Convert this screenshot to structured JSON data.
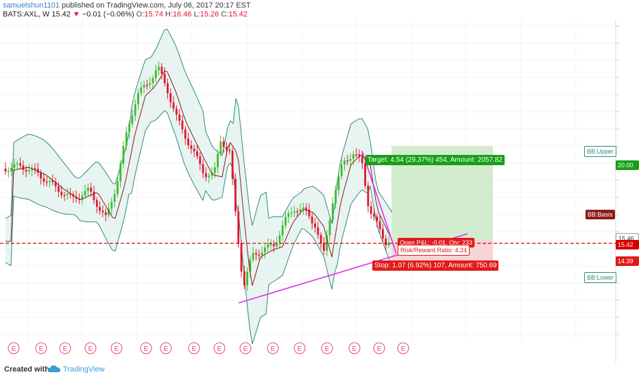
{
  "header": {
    "user": "samuelshun1101",
    "published": " published on TradingView.com, July 06, 2017 20:17 EST",
    "symbol": "BATS:AXL, W",
    "last": "15.42",
    "change_arrow": "▼",
    "change": "−0.01 (−0.06%)",
    "o_label": "O:",
    "o": "15.74",
    "h_label": "H:",
    "h": "16.46",
    "l_label": "L:",
    "l": "15.26",
    "c_label": "C:",
    "c": "15.42"
  },
  "labels": {
    "target": "Target: 4.54 (29.37%) 454, Amount: 2057.82",
    "open_pl": "Open P&L: -0.01, Qty: 233",
    "risk_reward": "Risk/Reward Ratio: 4.24",
    "stop": "Stop: 1.07 (6.92%) 107, Amount: 750.69",
    "bb_upper": "BB:Upper",
    "bb_basis": "BB:Basis",
    "bb_lower": "BB:Lower"
  },
  "price_axis": {
    "tag_target": "20.00",
    "tag_entry": "15.46",
    "tag_last": "15.42",
    "tag_stop": "14.39"
  },
  "earnings_marker": "E",
  "footer": {
    "created_with": "Created with",
    "brand": "TradingView"
  },
  "colors": {
    "up": "#3dbb2e",
    "down": "#e1152a",
    "bb_line": "#2e8a7a",
    "bb_fill": "#dff0ec",
    "basis": "#8b1a1a",
    "trend": "#e22de0",
    "target_zone": "#c9e7c2",
    "stop_zone": "#f6c9c9",
    "target_tag": "#16a016",
    "stop_tag": "#e11a1a",
    "dashed": "#d60000"
  }
}
